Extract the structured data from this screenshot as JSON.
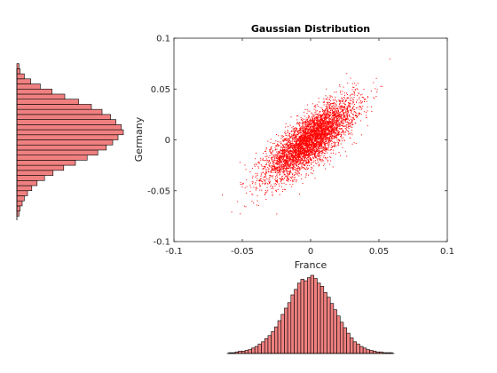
{
  "chart_data": [
    {
      "type": "scatter",
      "title": "Gaussian Distribution",
      "xlabel": "France",
      "ylabel": "Germany",
      "xlim": [
        -0.1,
        0.1
      ],
      "ylim": [
        -0.1,
        0.1
      ],
      "xticks": [
        -0.1,
        -0.05,
        0,
        0.05,
        0.1
      ],
      "yticks": [
        -0.1,
        -0.05,
        0,
        0.05,
        0.1
      ],
      "xtick_labels": [
        "-0.1",
        "-0.05",
        "0",
        "0.05",
        "0.1"
      ],
      "ytick_labels": [
        "-0.1",
        "-0.05",
        "0",
        "0.05",
        "0.1"
      ],
      "grid": false,
      "marker_color": "#ff0000",
      "distribution": {
        "mean_x": 0.0,
        "mean_y": 0.0,
        "std_x": 0.016,
        "std_y": 0.019,
        "correlation": 0.78,
        "n_points": 5000
      }
    },
    {
      "type": "bar",
      "orientation": "vertical",
      "variable": "France",
      "bin_range": [
        -0.06,
        0.06
      ],
      "bin_counts": [
        1,
        1,
        2,
        3,
        3,
        4,
        5,
        7,
        9,
        12,
        15,
        19,
        23,
        28,
        34,
        42,
        50,
        58,
        65,
        75,
        82,
        90,
        95,
        93,
        97,
        100,
        96,
        90,
        86,
        78,
        72,
        64,
        56,
        48,
        40,
        33,
        26,
        20,
        15,
        12,
        9,
        7,
        5,
        4,
        3,
        2,
        2,
        1,
        1,
        1
      ],
      "fill_color": "#f08080",
      "edge_color": "#000000"
    },
    {
      "type": "bar",
      "orientation": "horizontal",
      "variable": "Germany",
      "bin_range": [
        -0.075,
        0.075
      ],
      "bin_counts": [
        2,
        3,
        5,
        7,
        10,
        14,
        19,
        26,
        34,
        44,
        55,
        66,
        76,
        84,
        90,
        95,
        100,
        98,
        93,
        88,
        80,
        70,
        58,
        45,
        33,
        22,
        13,
        7,
        3,
        2
      ],
      "fill_color": "#f08080",
      "edge_color": "#000000"
    }
  ]
}
